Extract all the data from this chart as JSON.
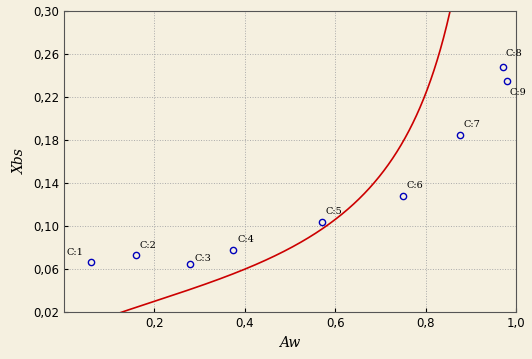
{
  "points_x": [
    0.06,
    0.16,
    0.28,
    0.375,
    0.57,
    0.75,
    0.875,
    0.972,
    0.981
  ],
  "points_y": [
    0.067,
    0.073,
    0.065,
    0.078,
    0.104,
    0.128,
    0.185,
    0.248,
    0.235
  ],
  "point_labels": [
    "C:1",
    "C:2",
    "C:3",
    "C:4",
    "C:5",
    "C:6",
    "C:7",
    "C:8",
    "C:9"
  ],
  "label_offsets_x": [
    -0.055,
    0.008,
    0.008,
    0.008,
    0.008,
    0.008,
    0.008,
    0.005,
    0.005
  ],
  "label_offsets_y": [
    0.006,
    0.007,
    0.003,
    0.007,
    0.007,
    0.007,
    0.007,
    0.01,
    -0.013
  ],
  "gab_Xm": 0.053,
  "gab_C": 3.5,
  "gab_K": 0.975,
  "curve_color": "#cc0000",
  "point_color": "#0000bb",
  "background_color": "#f5f0e0",
  "grid_color": "#aaaaaa",
  "xlabel": "Aw",
  "ylabel": "Xbs",
  "xlim": [
    0.0,
    1.0
  ],
  "ylim": [
    0.02,
    0.3
  ],
  "xticks": [
    0.2,
    0.4,
    0.6,
    0.8,
    1.0
  ],
  "yticks": [
    0.02,
    0.06,
    0.1,
    0.14,
    0.18,
    0.22,
    0.26,
    0.3
  ]
}
